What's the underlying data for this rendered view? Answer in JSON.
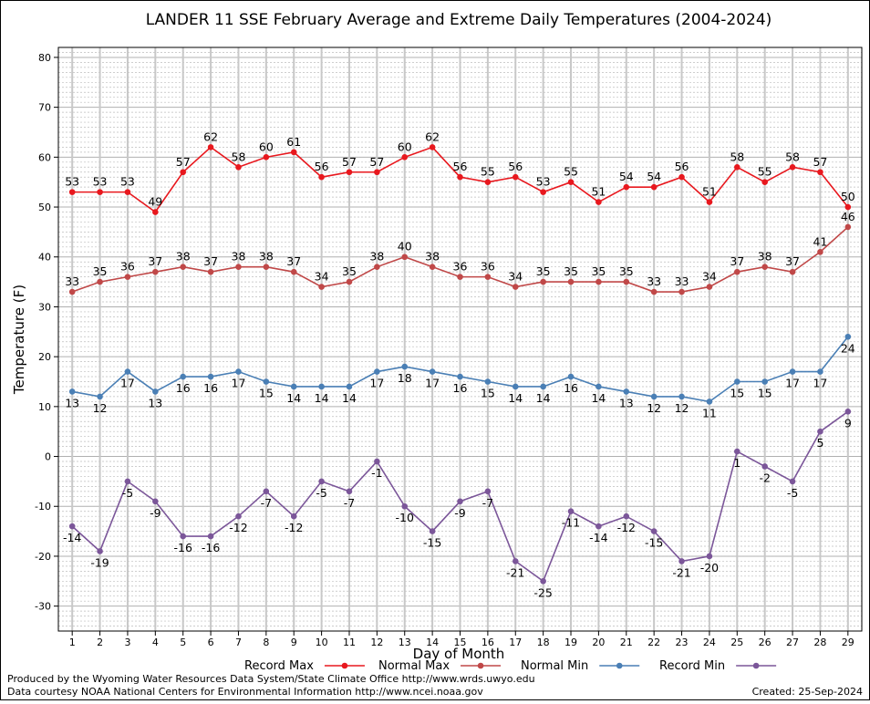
{
  "chart_data": {
    "type": "line",
    "title": "LANDER 11 SSE February Average and Extreme Daily Temperatures (2004-2024)",
    "xlabel": "Day of Month",
    "ylabel": "Temperature (F)",
    "ylim": [
      -35,
      82
    ],
    "yticks": [
      -30,
      -20,
      -10,
      0,
      10,
      20,
      30,
      40,
      50,
      60,
      70,
      80
    ],
    "xlim": [
      0.5,
      29.5
    ],
    "x": [
      1,
      2,
      3,
      4,
      5,
      6,
      7,
      8,
      9,
      10,
      11,
      12,
      13,
      14,
      15,
      16,
      17,
      18,
      19,
      20,
      21,
      22,
      23,
      24,
      25,
      26,
      27,
      28,
      29
    ],
    "grid": true,
    "legend_position": "bottom",
    "series": [
      {
        "name": "Record Max",
        "color": "#e8181e",
        "label_position": "above",
        "values": [
          53,
          53,
          53,
          49,
          57,
          62,
          58,
          60,
          61,
          56,
          57,
          57,
          60,
          62,
          56,
          55,
          56,
          53,
          55,
          51,
          54,
          54,
          56,
          51,
          58,
          55,
          58,
          57,
          50
        ]
      },
      {
        "name": "Normal Max",
        "color": "#c04848",
        "label_position": "above",
        "values": [
          33,
          35,
          36,
          37,
          38,
          37,
          38,
          38,
          37,
          34,
          35,
          38,
          40,
          38,
          36,
          36,
          34,
          35,
          35,
          35,
          35,
          33,
          33,
          34,
          37,
          38,
          37,
          41,
          46
        ]
      },
      {
        "name": "Normal Min",
        "color": "#4a7fb5",
        "label_position": "below",
        "values": [
          13,
          12,
          17,
          13,
          16,
          16,
          17,
          15,
          14,
          14,
          14,
          17,
          18,
          17,
          16,
          15,
          14,
          14,
          16,
          14,
          13,
          12,
          12,
          11,
          15,
          15,
          17,
          17,
          24
        ]
      },
      {
        "name": "Record Min",
        "color": "#7b5699",
        "label_position": "below",
        "values": [
          -14,
          -19,
          -5,
          -9,
          -16,
          -16,
          -12,
          -7,
          -12,
          -5,
          -7,
          -1,
          -10,
          -15,
          -9,
          -7,
          -21,
          -25,
          -11,
          -14,
          -12,
          -15,
          -21,
          -20,
          1,
          -2,
          -5,
          5,
          9
        ]
      }
    ]
  },
  "footer": {
    "produced_by": "Produced by the Wyoming Water Resources Data System/State Climate Office http://www.wrds.uwyo.edu",
    "courtesy": "Data courtesy NOAA National Centers for Environmental Information http://www.ncei.noaa.gov",
    "created": "Created: 25-Sep-2024"
  }
}
